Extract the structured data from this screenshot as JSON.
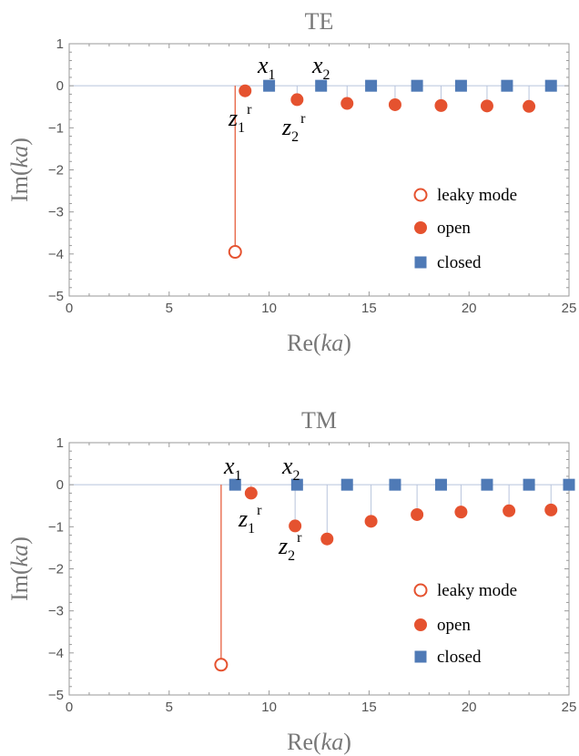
{
  "colors": {
    "open": "#E5522F",
    "closed": "#4F7AB6",
    "zero_line": "#B8C4DC",
    "leaky_stem": "#E5522F",
    "frame": "#9a9a9a"
  },
  "chart_data": [
    {
      "type": "scatter",
      "title": "TE",
      "xlabel_main": "Re(",
      "xlabel_var": "ka",
      "xlabel_end": ")",
      "ylabel_main": "Im(",
      "ylabel_var": "ka",
      "ylabel_end": ")",
      "xlim": [
        0,
        25
      ],
      "ylim": [
        -5,
        1
      ],
      "xticks": [
        0,
        5,
        10,
        15,
        20,
        25
      ],
      "yticks": [
        1,
        0,
        -1,
        -2,
        -3,
        -4,
        -5
      ],
      "ytick_labels": [
        "1",
        "0",
        "−1",
        "−2",
        "−3",
        "−4",
        "−5"
      ],
      "legend_position": "lower-right",
      "legend": [
        "leaky mode",
        "open",
        "closed"
      ],
      "series": [
        {
          "name": "leaky mode",
          "marker": "open-circle",
          "points": [
            [
              8.3,
              -3.95
            ]
          ]
        },
        {
          "name": "open",
          "marker": "filled-circle",
          "points": [
            [
              8.8,
              -0.12
            ],
            [
              11.4,
              -0.33
            ],
            [
              13.9,
              -0.42
            ],
            [
              16.3,
              -0.45
            ],
            [
              18.6,
              -0.47
            ],
            [
              20.9,
              -0.48
            ],
            [
              23.0,
              -0.49
            ]
          ]
        },
        {
          "name": "closed",
          "marker": "square",
          "points": [
            [
              10.0,
              0
            ],
            [
              12.6,
              0
            ],
            [
              15.1,
              0
            ],
            [
              17.4,
              0
            ],
            [
              19.6,
              0
            ],
            [
              21.9,
              0
            ],
            [
              24.1,
              0
            ]
          ]
        }
      ],
      "annotations": [
        {
          "text": "x",
          "sub": "1"
        },
        {
          "text": "x",
          "sub": "2"
        },
        {
          "text": "z",
          "sub": "1",
          "sup": "r"
        },
        {
          "text": "z",
          "sub": "2",
          "sup": "r"
        }
      ]
    },
    {
      "type": "scatter",
      "title": "TM",
      "xlabel_main": "Re(",
      "xlabel_var": "ka",
      "xlabel_end": ")",
      "ylabel_main": "Im(",
      "ylabel_var": "ka",
      "ylabel_end": ")",
      "xlim": [
        0,
        25
      ],
      "ylim": [
        -5,
        1
      ],
      "xticks": [
        0,
        5,
        10,
        15,
        20,
        25
      ],
      "yticks": [
        1,
        0,
        -1,
        -2,
        -3,
        -4,
        -5
      ],
      "ytick_labels": [
        "1",
        "0",
        "−1",
        "−2",
        "−3",
        "−4",
        "−5"
      ],
      "legend_position": "lower-right",
      "legend": [
        "leaky mode",
        "open",
        "closed"
      ],
      "series": [
        {
          "name": "leaky mode",
          "marker": "open-circle",
          "points": [
            [
              7.6,
              -4.28
            ]
          ]
        },
        {
          "name": "open",
          "marker": "filled-circle",
          "points": [
            [
              9.1,
              -0.2
            ],
            [
              11.3,
              -0.98
            ],
            [
              12.9,
              -1.29
            ],
            [
              15.1,
              -0.87
            ],
            [
              17.4,
              -0.71
            ],
            [
              19.6,
              -0.65
            ],
            [
              22.0,
              -0.62
            ],
            [
              24.1,
              -0.6
            ]
          ]
        },
        {
          "name": "closed",
          "marker": "square",
          "points": [
            [
              8.3,
              0
            ],
            [
              11.4,
              0
            ],
            [
              13.9,
              0
            ],
            [
              16.3,
              0
            ],
            [
              18.6,
              0
            ],
            [
              20.9,
              0
            ],
            [
              23.0,
              0
            ],
            [
              25.0,
              0
            ]
          ]
        }
      ],
      "annotations": [
        {
          "text": "x",
          "sub": "1"
        },
        {
          "text": "x",
          "sub": "2"
        },
        {
          "text": "z",
          "sub": "1",
          "sup": "r"
        },
        {
          "text": "z",
          "sub": "2",
          "sup": "r"
        }
      ]
    }
  ]
}
